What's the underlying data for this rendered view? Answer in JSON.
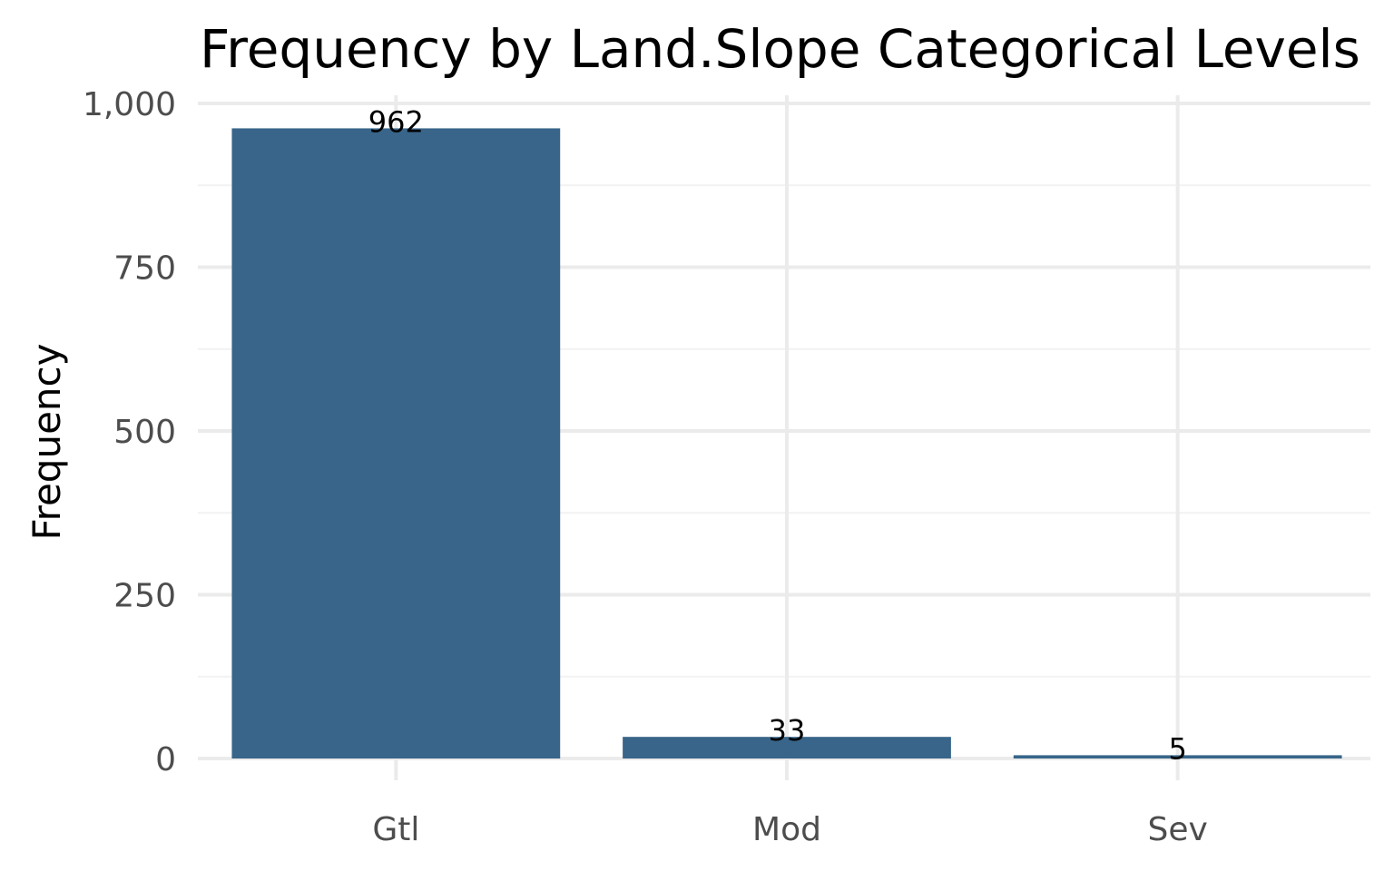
{
  "chart_data": {
    "type": "bar",
    "title": "Frequency by Land.Slope Categorical Levels",
    "xlabel": "",
    "ylabel": "Frequency",
    "categories": [
      "Gtl",
      "Mod",
      "Sev"
    ],
    "values": [
      962,
      33,
      5
    ],
    "data_labels": [
      "962",
      "33",
      "5"
    ],
    "ylim": [
      0,
      1000
    ],
    "yticks": [
      0,
      250,
      500,
      750,
      1000
    ],
    "ytick_labels": [
      "0",
      "250",
      "500",
      "750",
      "1,000"
    ],
    "y_minor_ticks": [
      125,
      375,
      625,
      875
    ],
    "grid": true,
    "legend": "none",
    "bar_color": "#386589",
    "background": "#ffffff"
  }
}
